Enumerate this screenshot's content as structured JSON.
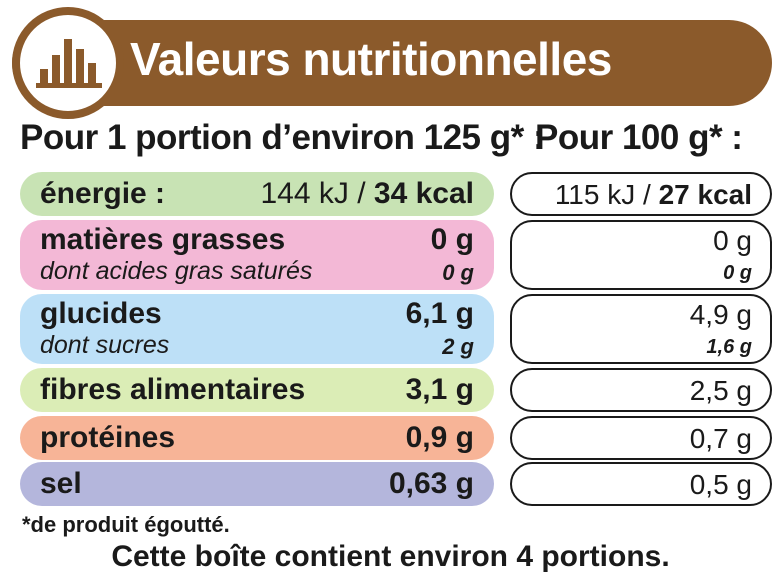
{
  "header": {
    "title": "Valeurs nutritionnelles",
    "logo_icon": "bar-chart-icon",
    "color": "#8b5a2b"
  },
  "columns": {
    "per_portion": "Pour 1 portion d’environ 125 g* :",
    "per_100g": "Pour 100 g* :"
  },
  "rows": {
    "energie": {
      "label": "énergie :",
      "portion_kj": "144 kJ / ",
      "portion_kcal": "34 kcal",
      "per100_kj": "115 kJ / ",
      "per100_kcal": "27 kcal",
      "color": "#c8e3b4"
    },
    "matieres": {
      "label": "matières grasses",
      "portion": "0 g",
      "per100": "0 g",
      "sub_label": "dont acides gras saturés",
      "sub_portion": "0 g",
      "sub_per100": "0 g",
      "color": "#f3b8d6"
    },
    "glucides": {
      "label": "glucides",
      "portion": "6,1 g",
      "per100": "4,9 g",
      "sub_label": "dont sucres",
      "sub_portion": "2 g",
      "sub_per100": "1,6 g",
      "color": "#bde0f7"
    },
    "fibres": {
      "label": "fibres alimentaires",
      "portion": "3,1 g",
      "per100": "2,5 g",
      "color": "#dbedb6"
    },
    "proteines": {
      "label": "protéines",
      "portion": "0,9 g",
      "per100": "0,7 g",
      "color": "#f7b497"
    },
    "sel": {
      "label": "sel",
      "portion": "0,63 g",
      "per100": "0,5 g",
      "color": "#b4b6dc"
    }
  },
  "footnote": "*de produit égoutté.",
  "footer": "Cette boîte contient environ 4 portions."
}
